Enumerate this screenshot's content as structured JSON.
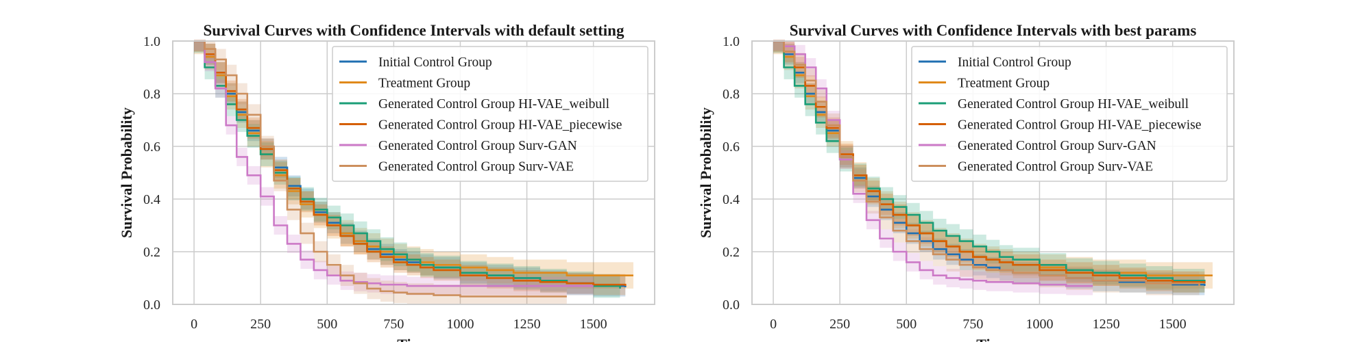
{
  "colors": {
    "initial": "#1f6fb2",
    "treatment": "#e0891a",
    "weibull": "#1a9e77",
    "piecewise": "#d55e00",
    "survgan": "#cc79c7",
    "survvae": "#cc8f5d",
    "grid": "#cccccc",
    "frame": "#cccccc"
  },
  "chart_data": [
    {
      "type": "line",
      "step": true,
      "title": "Survival Curves with Confidence Intervals with default setting",
      "xlabel": "Time",
      "ylabel": "Survival Probability",
      "xlim": [
        -80,
        1730
      ],
      "ylim": [
        0,
        1
      ],
      "xticks": [
        "0",
        "250",
        "500",
        "750",
        "1000",
        "1250",
        "1500"
      ],
      "yticks": [
        "0.0",
        "0.2",
        "0.4",
        "0.6",
        "0.8",
        "1.0"
      ],
      "grid": true,
      "legend": "top-right",
      "series": [
        {
          "name": "Initial Control Group",
          "color_key": "initial",
          "ci": 0.04,
          "x": [
            0,
            40,
            80,
            120,
            160,
            200,
            250,
            300,
            350,
            400,
            450,
            500,
            550,
            600,
            650,
            700,
            750,
            800,
            850,
            900,
            1000,
            1100,
            1200,
            1300,
            1400,
            1500,
            1620
          ],
          "y": [
            1.0,
            0.95,
            0.88,
            0.8,
            0.73,
            0.66,
            0.59,
            0.52,
            0.45,
            0.4,
            0.35,
            0.31,
            0.27,
            0.24,
            0.21,
            0.19,
            0.17,
            0.16,
            0.15,
            0.14,
            0.12,
            0.11,
            0.1,
            0.09,
            0.08,
            0.07,
            0.065
          ]
        },
        {
          "name": "Treatment Group",
          "color_key": "treatment",
          "ci": 0.05,
          "x": [
            0,
            40,
            80,
            120,
            160,
            200,
            250,
            300,
            350,
            400,
            450,
            500,
            550,
            600,
            650,
            700,
            750,
            800,
            850,
            900,
            1000,
            1100,
            1200,
            1300,
            1400,
            1500,
            1650
          ],
          "y": [
            1.0,
            0.94,
            0.87,
            0.79,
            0.72,
            0.65,
            0.57,
            0.49,
            0.43,
            0.38,
            0.34,
            0.3,
            0.27,
            0.24,
            0.22,
            0.2,
            0.18,
            0.17,
            0.16,
            0.15,
            0.14,
            0.13,
            0.12,
            0.12,
            0.11,
            0.11,
            0.11
          ]
        },
        {
          "name": "Generated Control Group HI-VAE_weibull",
          "color_key": "weibull",
          "ci": 0.045,
          "x": [
            0,
            40,
            80,
            120,
            160,
            200,
            250,
            300,
            350,
            400,
            450,
            500,
            550,
            600,
            650,
            700,
            750,
            800,
            850,
            900,
            1000,
            1100,
            1200,
            1300,
            1400,
            1500,
            1600
          ],
          "y": [
            1.0,
            0.9,
            0.83,
            0.76,
            0.7,
            0.64,
            0.57,
            0.5,
            0.44,
            0.4,
            0.36,
            0.33,
            0.3,
            0.27,
            0.24,
            0.21,
            0.19,
            0.17,
            0.15,
            0.14,
            0.12,
            0.11,
            0.1,
            0.09,
            0.08,
            0.07,
            0.06
          ]
        },
        {
          "name": "Generated Control Group HI-VAE_piecewise",
          "color_key": "piecewise",
          "ci": 0.04,
          "x": [
            0,
            40,
            80,
            120,
            160,
            200,
            250,
            300,
            350,
            400,
            450,
            500,
            550,
            600,
            650,
            700,
            750,
            800,
            850,
            900,
            1000,
            1100,
            1200,
            1300,
            1400,
            1500,
            1620
          ],
          "y": [
            1.0,
            0.95,
            0.88,
            0.81,
            0.74,
            0.67,
            0.59,
            0.51,
            0.44,
            0.39,
            0.34,
            0.3,
            0.26,
            0.23,
            0.2,
            0.18,
            0.16,
            0.15,
            0.14,
            0.13,
            0.11,
            0.1,
            0.09,
            0.085,
            0.08,
            0.075,
            0.07
          ]
        },
        {
          "name": "Generated Control Group Surv-GAN",
          "color_key": "survgan",
          "ci": 0.035,
          "x": [
            0,
            40,
            80,
            120,
            160,
            200,
            250,
            300,
            350,
            400,
            450,
            500,
            550,
            600,
            650,
            700,
            800,
            900,
            1000,
            1100,
            1200,
            1400,
            1500
          ],
          "y": [
            1.0,
            0.92,
            0.82,
            0.68,
            0.56,
            0.49,
            0.41,
            0.3,
            0.23,
            0.17,
            0.13,
            0.11,
            0.09,
            0.085,
            0.08,
            0.075,
            0.07,
            0.07,
            0.07,
            0.07,
            0.07,
            0.07,
            0.07
          ]
        },
        {
          "name": "Generated Control Group Surv-VAE",
          "color_key": "survvae",
          "ci": 0.04,
          "x": [
            0,
            40,
            80,
            120,
            160,
            200,
            250,
            300,
            350,
            400,
            450,
            500,
            550,
            600,
            650,
            700,
            750,
            800,
            900,
            1000,
            1100,
            1200,
            1300,
            1400
          ],
          "y": [
            1.0,
            0.97,
            0.93,
            0.87,
            0.8,
            0.72,
            0.6,
            0.47,
            0.36,
            0.27,
            0.2,
            0.15,
            0.11,
            0.08,
            0.06,
            0.05,
            0.045,
            0.04,
            0.035,
            0.03,
            0.03,
            0.03,
            0.03,
            0.03
          ]
        }
      ]
    },
    {
      "type": "line",
      "step": true,
      "title": "Survival Curves with Confidence Intervals with best params",
      "xlabel": "Time",
      "ylabel": "Survival Probability",
      "xlim": [
        -80,
        1730
      ],
      "ylim": [
        0,
        1
      ],
      "xticks": [
        "0",
        "250",
        "500",
        "750",
        "1000",
        "1250",
        "1500"
      ],
      "yticks": [
        "0.0",
        "0.2",
        "0.4",
        "0.6",
        "0.8",
        "1.0"
      ],
      "grid": true,
      "legend": "top-right",
      "series": [
        {
          "name": "Initial Control Group",
          "color_key": "initial",
          "ci": 0.04,
          "x": [
            0,
            40,
            80,
            120,
            160,
            200,
            250,
            300,
            350,
            400,
            450,
            500,
            550,
            600,
            650,
            700,
            750,
            800,
            850,
            900,
            1000,
            1100,
            1200,
            1300,
            1400,
            1500,
            1620
          ],
          "y": [
            1.0,
            0.95,
            0.88,
            0.8,
            0.73,
            0.66,
            0.56,
            0.48,
            0.41,
            0.36,
            0.31,
            0.27,
            0.24,
            0.21,
            0.19,
            0.17,
            0.15,
            0.14,
            0.13,
            0.12,
            0.11,
            0.1,
            0.09,
            0.085,
            0.08,
            0.075,
            0.07
          ]
        },
        {
          "name": "Treatment Group",
          "color_key": "treatment",
          "ci": 0.05,
          "x": [
            0,
            40,
            80,
            120,
            160,
            200,
            250,
            300,
            350,
            400,
            450,
            500,
            550,
            600,
            650,
            700,
            750,
            800,
            850,
            900,
            1000,
            1100,
            1200,
            1300,
            1400,
            1500,
            1650
          ],
          "y": [
            1.0,
            0.94,
            0.87,
            0.79,
            0.72,
            0.65,
            0.57,
            0.49,
            0.43,
            0.38,
            0.34,
            0.3,
            0.27,
            0.24,
            0.22,
            0.2,
            0.18,
            0.17,
            0.16,
            0.15,
            0.14,
            0.13,
            0.12,
            0.12,
            0.11,
            0.11,
            0.11
          ]
        },
        {
          "name": "Generated Control Group HI-VAE_weibull",
          "color_key": "weibull",
          "ci": 0.045,
          "x": [
            0,
            40,
            80,
            120,
            160,
            200,
            250,
            300,
            350,
            400,
            450,
            500,
            550,
            600,
            650,
            700,
            750,
            800,
            850,
            900,
            1000,
            1100,
            1200,
            1300,
            1400,
            1500,
            1620
          ],
          "y": [
            1.0,
            0.9,
            0.83,
            0.76,
            0.69,
            0.62,
            0.55,
            0.49,
            0.44,
            0.4,
            0.37,
            0.34,
            0.31,
            0.28,
            0.26,
            0.24,
            0.22,
            0.2,
            0.18,
            0.17,
            0.15,
            0.13,
            0.12,
            0.11,
            0.1,
            0.09,
            0.08
          ]
        },
        {
          "name": "Generated Control Group HI-VAE_piecewise",
          "color_key": "piecewise",
          "ci": 0.04,
          "x": [
            0,
            40,
            80,
            120,
            160,
            200,
            250,
            300,
            350,
            400,
            450,
            500,
            550,
            600,
            650,
            700,
            750,
            800,
            850,
            900,
            1000,
            1100,
            1200,
            1300,
            1400,
            1500,
            1620
          ],
          "y": [
            1.0,
            0.96,
            0.9,
            0.83,
            0.75,
            0.67,
            0.57,
            0.49,
            0.43,
            0.38,
            0.34,
            0.3,
            0.27,
            0.24,
            0.22,
            0.2,
            0.18,
            0.17,
            0.16,
            0.15,
            0.13,
            0.12,
            0.11,
            0.1,
            0.09,
            0.085,
            0.08
          ]
        },
        {
          "name": "Generated Control Group Surv-GAN",
          "color_key": "survgan",
          "ci": 0.035,
          "x": [
            0,
            40,
            80,
            120,
            160,
            200,
            250,
            300,
            350,
            400,
            450,
            500,
            550,
            600,
            650,
            700,
            750,
            800,
            900,
            1000,
            1100,
            1200
          ],
          "y": [
            1.0,
            0.98,
            0.95,
            0.9,
            0.82,
            0.7,
            0.55,
            0.42,
            0.32,
            0.25,
            0.2,
            0.16,
            0.13,
            0.11,
            0.1,
            0.095,
            0.09,
            0.085,
            0.08,
            0.075,
            0.07,
            0.07
          ]
        },
        {
          "name": "Generated Control Group Surv-VAE",
          "color_key": "survvae",
          "ci": 0.045,
          "x": [
            0,
            40,
            80,
            120,
            160,
            200,
            250,
            300,
            350,
            400,
            450,
            500,
            550,
            600,
            650,
            700,
            750,
            800,
            900,
            1000,
            1100,
            1200,
            1300,
            1400,
            1500,
            1600
          ],
          "y": [
            1.0,
            0.96,
            0.91,
            0.85,
            0.77,
            0.68,
            0.56,
            0.47,
            0.39,
            0.33,
            0.28,
            0.24,
            0.21,
            0.19,
            0.17,
            0.15,
            0.14,
            0.13,
            0.12,
            0.11,
            0.1,
            0.09,
            0.09,
            0.08,
            0.08,
            0.07
          ]
        }
      ]
    }
  ]
}
